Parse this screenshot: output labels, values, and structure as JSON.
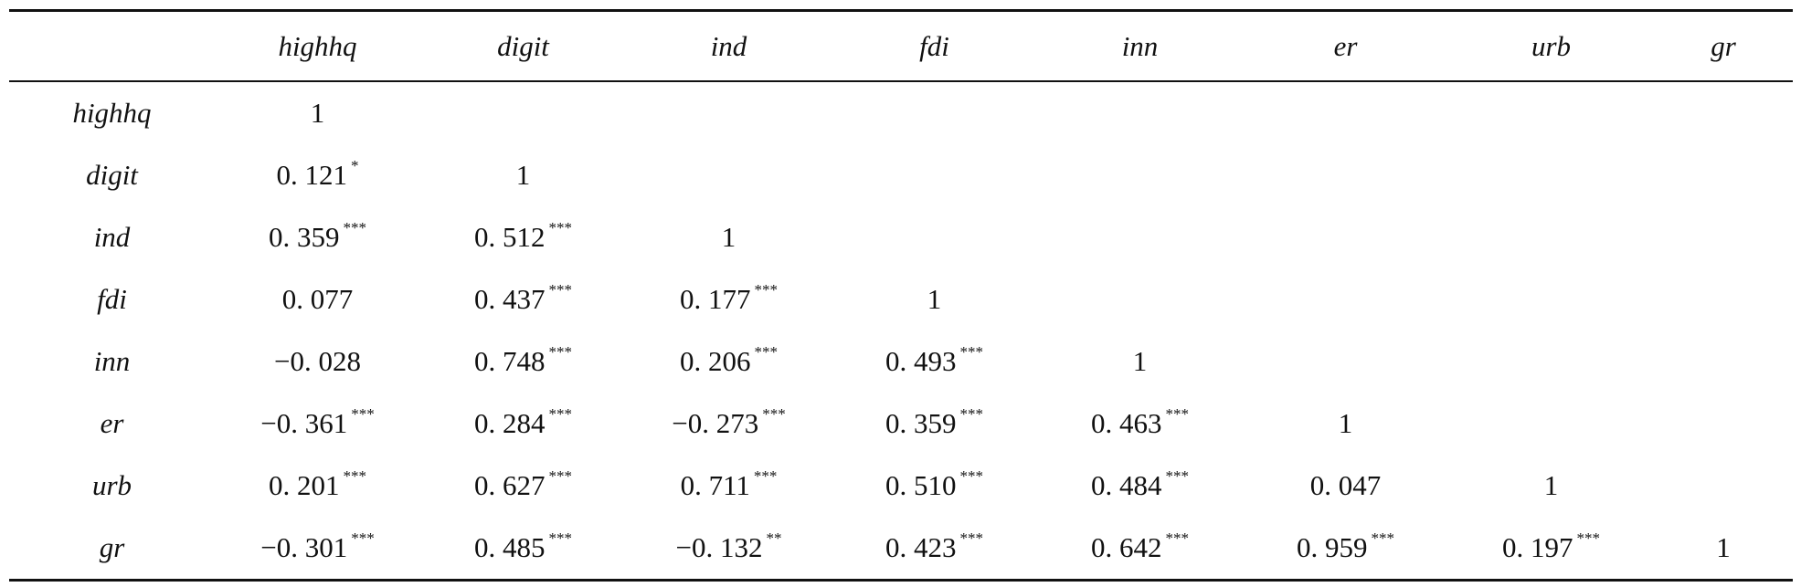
{
  "table": {
    "columns": [
      "",
      "highhq",
      "digit",
      "ind",
      "fdi",
      "inn",
      "er",
      "urb",
      "gr"
    ],
    "rows": [
      {
        "label": "highhq",
        "cells": [
          {
            "v": "1",
            "s": ""
          },
          {
            "v": "",
            "s": ""
          },
          {
            "v": "",
            "s": ""
          },
          {
            "v": "",
            "s": ""
          },
          {
            "v": "",
            "s": ""
          },
          {
            "v": "",
            "s": ""
          },
          {
            "v": "",
            "s": ""
          },
          {
            "v": "",
            "s": ""
          }
        ]
      },
      {
        "label": "digit",
        "cells": [
          {
            "v": "0. 121",
            "s": "*"
          },
          {
            "v": "1",
            "s": ""
          },
          {
            "v": "",
            "s": ""
          },
          {
            "v": "",
            "s": ""
          },
          {
            "v": "",
            "s": ""
          },
          {
            "v": "",
            "s": ""
          },
          {
            "v": "",
            "s": ""
          },
          {
            "v": "",
            "s": ""
          }
        ]
      },
      {
        "label": "ind",
        "cells": [
          {
            "v": "0. 359",
            "s": "***"
          },
          {
            "v": "0. 512",
            "s": "***"
          },
          {
            "v": "1",
            "s": ""
          },
          {
            "v": "",
            "s": ""
          },
          {
            "v": "",
            "s": ""
          },
          {
            "v": "",
            "s": ""
          },
          {
            "v": "",
            "s": ""
          },
          {
            "v": "",
            "s": ""
          }
        ]
      },
      {
        "label": "fdi",
        "cells": [
          {
            "v": "0. 077",
            "s": ""
          },
          {
            "v": "0. 437",
            "s": "***"
          },
          {
            "v": "0. 177",
            "s": "***"
          },
          {
            "v": "1",
            "s": ""
          },
          {
            "v": "",
            "s": ""
          },
          {
            "v": "",
            "s": ""
          },
          {
            "v": "",
            "s": ""
          },
          {
            "v": "",
            "s": ""
          }
        ]
      },
      {
        "label": "inn",
        "cells": [
          {
            "v": "−0. 028",
            "s": ""
          },
          {
            "v": "0. 748",
            "s": "***"
          },
          {
            "v": "0. 206",
            "s": "***"
          },
          {
            "v": "0. 493",
            "s": "***"
          },
          {
            "v": "1",
            "s": ""
          },
          {
            "v": "",
            "s": ""
          },
          {
            "v": "",
            "s": ""
          },
          {
            "v": "",
            "s": ""
          }
        ]
      },
      {
        "label": "er",
        "cells": [
          {
            "v": "−0. 361",
            "s": "***"
          },
          {
            "v": "0. 284",
            "s": "***"
          },
          {
            "v": "−0. 273",
            "s": "***"
          },
          {
            "v": "0. 359",
            "s": "***"
          },
          {
            "v": "0. 463",
            "s": "***"
          },
          {
            "v": "1",
            "s": ""
          },
          {
            "v": "",
            "s": ""
          },
          {
            "v": "",
            "s": ""
          }
        ]
      },
      {
        "label": "urb",
        "cells": [
          {
            "v": "0. 201",
            "s": "***"
          },
          {
            "v": "0. 627",
            "s": "***"
          },
          {
            "v": "0. 711",
            "s": "***"
          },
          {
            "v": "0. 510",
            "s": "***"
          },
          {
            "v": "0. 484",
            "s": "***"
          },
          {
            "v": "0. 047",
            "s": ""
          },
          {
            "v": "1",
            "s": ""
          },
          {
            "v": "",
            "s": ""
          }
        ]
      },
      {
        "label": "gr",
        "cells": [
          {
            "v": "−0. 301",
            "s": "***"
          },
          {
            "v": "0. 485",
            "s": "***"
          },
          {
            "v": "−0. 132",
            "s": "**"
          },
          {
            "v": "0. 423",
            "s": "***"
          },
          {
            "v": "0. 642",
            "s": "***"
          },
          {
            "v": "0. 959",
            "s": "***"
          },
          {
            "v": "0. 197",
            "s": "***"
          },
          {
            "v": "1",
            "s": ""
          }
        ]
      }
    ]
  }
}
